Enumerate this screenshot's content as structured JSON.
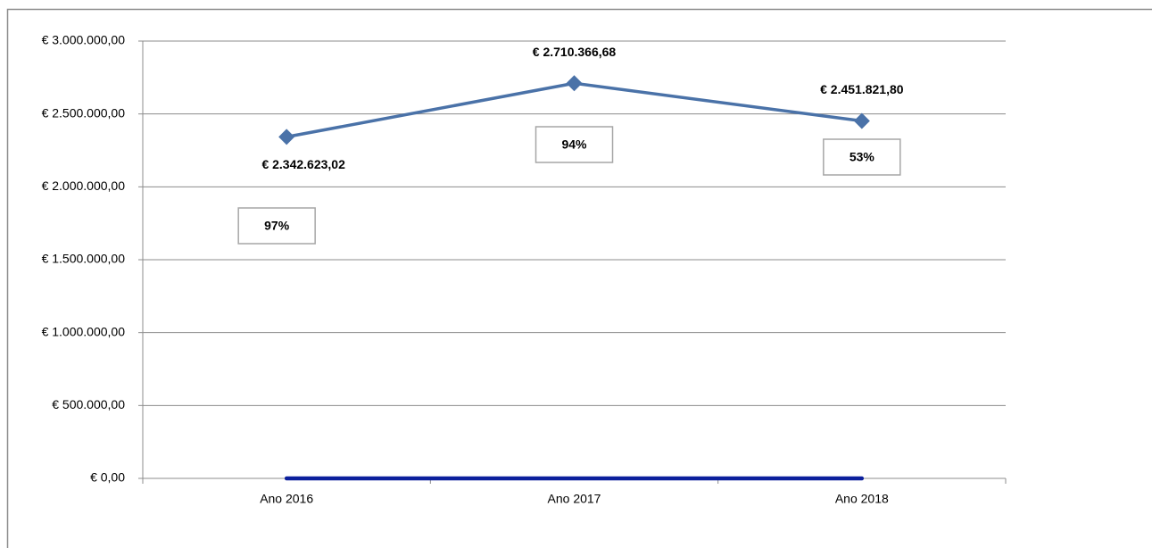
{
  "chart_data": {
    "type": "line",
    "categories": [
      "Ano 2016",
      "Ano 2017",
      "Ano 2018"
    ],
    "series": [
      {
        "color": "#4a72a8",
        "values": [
          2342623.02,
          2710366.68,
          2451821.8
        ],
        "value_labels": [
          "€ 2.342.623,02",
          "€ 2.710.366,68",
          "€ 2.451.821,80"
        ]
      },
      {
        "color": "#0b1f9c",
        "values": [
          0.97,
          0.94,
          0.53
        ],
        "value_labels": [
          "97%",
          "94%",
          "53%"
        ]
      }
    ],
    "ylim": [
      0,
      3000000
    ],
    "yticks": [
      {
        "value": 0,
        "label": "€ 0,00"
      },
      {
        "value": 500000,
        "label": "€ 500.000,00"
      },
      {
        "value": 1000000,
        "label": "€ 1.000.000,00"
      },
      {
        "value": 1500000,
        "label": "€ 1.500.000,00"
      },
      {
        "value": 2000000,
        "label": "€ 2.000.000,00"
      },
      {
        "value": 2500000,
        "label": "€ 2.500.000,00"
      },
      {
        "value": 3000000,
        "label": "€ 3.000.000,00"
      }
    ],
    "grid": true
  }
}
